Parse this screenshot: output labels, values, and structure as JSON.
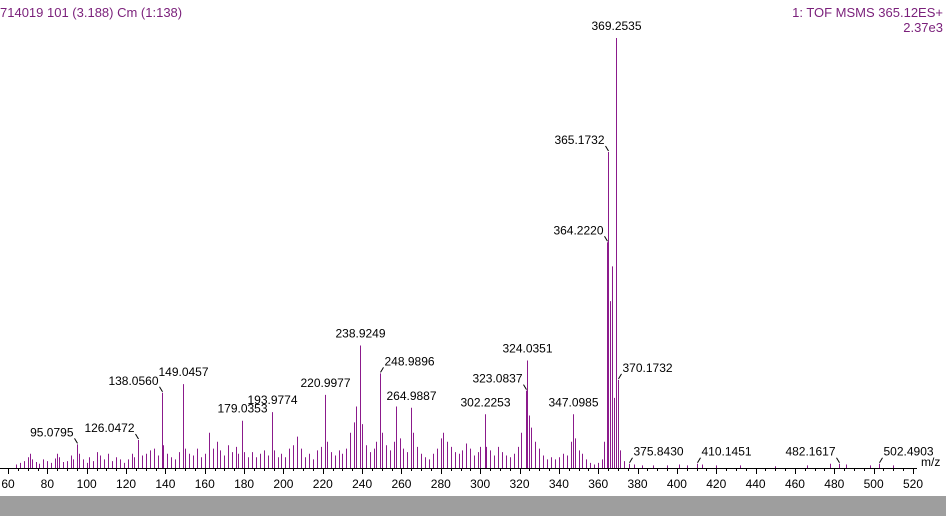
{
  "header": {
    "sample_info": "714019 101 (3.188) Cm (1:138)",
    "experiment": "1: TOF MSMS 365.12ES+",
    "intensity": "2.37e3"
  },
  "colors": {
    "peak": "#8b1a8b",
    "header_text": "#7a1f7a",
    "axis": "#000000",
    "bottom_bar": "#9e9e9e"
  },
  "chart_data": {
    "type": "bar",
    "title": "",
    "xlabel": "m/z",
    "ylabel": "",
    "xlim": [
      60,
      520
    ],
    "ylim": [
      0,
      100
    ],
    "x_ticks": [
      60,
      80,
      100,
      120,
      140,
      160,
      180,
      200,
      220,
      240,
      260,
      280,
      300,
      320,
      340,
      360,
      380,
      400,
      420,
      440,
      460,
      480,
      500,
      520
    ],
    "labeled_peaks": [
      {
        "mz": 95.0795,
        "intensity": 5.5,
        "label": "95.0795"
      },
      {
        "mz": 126.0472,
        "intensity": 6.5,
        "label": "126.0472"
      },
      {
        "mz": 138.056,
        "intensity": 17.5,
        "label": "138.0560"
      },
      {
        "mz": 149.0457,
        "intensity": 19.5,
        "label": "149.0457"
      },
      {
        "mz": 179.0353,
        "intensity": 11.0,
        "label": "179.0353"
      },
      {
        "mz": 193.9774,
        "intensity": 13.0,
        "label": "193.9774"
      },
      {
        "mz": 220.9977,
        "intensity": 17.0,
        "label": "220.9977"
      },
      {
        "mz": 238.9249,
        "intensity": 28.5,
        "label": "238.9249"
      },
      {
        "mz": 248.9896,
        "intensity": 22.0,
        "label": "248.9896"
      },
      {
        "mz": 264.9887,
        "intensity": 14.0,
        "label": "264.9887"
      },
      {
        "mz": 302.2253,
        "intensity": 12.5,
        "label": "302.2253"
      },
      {
        "mz": 323.0837,
        "intensity": 18.0,
        "label": "323.0837"
      },
      {
        "mz": 324.0351,
        "intensity": 25.0,
        "label": "324.0351"
      },
      {
        "mz": 347.0985,
        "intensity": 12.5,
        "label": "347.0985"
      },
      {
        "mz": 364.222,
        "intensity": 52.5,
        "label": "364.2220"
      },
      {
        "mz": 365.1732,
        "intensity": 73.5,
        "label": "365.1732"
      },
      {
        "mz": 369.2535,
        "intensity": 100.0,
        "label": "369.2535"
      },
      {
        "mz": 370.1732,
        "intensity": 20.5,
        "label": "370.1732"
      },
      {
        "mz": 375.843,
        "intensity": 1.0,
        "label": "375.8430"
      },
      {
        "mz": 410.1451,
        "intensity": 1.0,
        "label": "410.1451"
      },
      {
        "mz": 482.1617,
        "intensity": 1.0,
        "label": "482.1617"
      },
      {
        "mz": 502.4903,
        "intensity": 1.0,
        "label": "502.4903"
      }
    ],
    "peaks": [
      [
        64,
        0.8
      ],
      [
        66,
        1.2
      ],
      [
        68,
        1.6
      ],
      [
        70,
        2.5
      ],
      [
        71,
        3.3
      ],
      [
        72,
        2.0
      ],
      [
        74,
        1.4
      ],
      [
        76,
        1.0
      ],
      [
        78,
        2.0
      ],
      [
        80,
        1.6
      ],
      [
        82,
        1.2
      ],
      [
        84,
        2.2
      ],
      [
        85,
        3.3
      ],
      [
        86,
        2.5
      ],
      [
        88,
        1.4
      ],
      [
        90,
        1.6
      ],
      [
        92,
        2.9
      ],
      [
        93,
        2.0
      ],
      [
        95.0795,
        5.5
      ],
      [
        96,
        3.3
      ],
      [
        98,
        2.0
      ],
      [
        100,
        1.2
      ],
      [
        101,
        2.5
      ],
      [
        103,
        1.6
      ],
      [
        105,
        3.7
      ],
      [
        107,
        2.9
      ],
      [
        109,
        2.0
      ],
      [
        111,
        3.3
      ],
      [
        113,
        1.6
      ],
      [
        115,
        2.5
      ],
      [
        117,
        2.0
      ],
      [
        119,
        1.2
      ],
      [
        121,
        2.0
      ],
      [
        123,
        3.3
      ],
      [
        124,
        2.5
      ],
      [
        126.0472,
        6.5
      ],
      [
        128,
        2.9
      ],
      [
        130,
        3.3
      ],
      [
        132,
        4.1
      ],
      [
        134,
        4.5
      ],
      [
        136,
        2.9
      ],
      [
        138.056,
        17.5
      ],
      [
        139,
        5.3
      ],
      [
        141,
        3.3
      ],
      [
        143,
        2.5
      ],
      [
        145,
        2.0
      ],
      [
        147,
        3.7
      ],
      [
        149.0457,
        19.5
      ],
      [
        150,
        4.5
      ],
      [
        152,
        3.3
      ],
      [
        154,
        2.9
      ],
      [
        156,
        4.5
      ],
      [
        158,
        2.5
      ],
      [
        160,
        3.3
      ],
      [
        162,
        8.2
      ],
      [
        164,
        4.5
      ],
      [
        166,
        6.1
      ],
      [
        168,
        4.1
      ],
      [
        170,
        2.9
      ],
      [
        172,
        5.3
      ],
      [
        174,
        3.7
      ],
      [
        176,
        4.9
      ],
      [
        177,
        3.3
      ],
      [
        179.0353,
        11.0
      ],
      [
        180,
        3.7
      ],
      [
        182,
        2.5
      ],
      [
        184,
        3.7
      ],
      [
        186,
        2.5
      ],
      [
        188,
        3.3
      ],
      [
        190,
        4.1
      ],
      [
        192,
        2.9
      ],
      [
        193.9774,
        13.0
      ],
      [
        195,
        4.1
      ],
      [
        197,
        2.5
      ],
      [
        199,
        3.3
      ],
      [
        201,
        2.5
      ],
      [
        203,
        4.5
      ],
      [
        205,
        5.3
      ],
      [
        207,
        7.3
      ],
      [
        209,
        4.5
      ],
      [
        211,
        2.5
      ],
      [
        213,
        3.3
      ],
      [
        215,
        2.0
      ],
      [
        217,
        4.1
      ],
      [
        219,
        4.9
      ],
      [
        220.9977,
        17.0
      ],
      [
        222,
        6.1
      ],
      [
        224,
        3.7
      ],
      [
        226,
        2.9
      ],
      [
        228,
        4.1
      ],
      [
        230,
        3.3
      ],
      [
        232,
        4.5
      ],
      [
        234,
        8.2
      ],
      [
        236,
        10.6
      ],
      [
        237,
        14.3
      ],
      [
        238.9249,
        28.5
      ],
      [
        240,
        10.2
      ],
      [
        242,
        5.3
      ],
      [
        244,
        3.7
      ],
      [
        246,
        4.5
      ],
      [
        247,
        6.1
      ],
      [
        248.9896,
        22.0
      ],
      [
        250,
        8.2
      ],
      [
        252,
        5.3
      ],
      [
        254,
        4.1
      ],
      [
        256,
        6.1
      ],
      [
        257,
        14.3
      ],
      [
        259,
        6.9
      ],
      [
        261,
        4.5
      ],
      [
        263,
        3.7
      ],
      [
        264.9887,
        14.0
      ],
      [
        266,
        8.2
      ],
      [
        268,
        4.9
      ],
      [
        270,
        3.3
      ],
      [
        272,
        2.5
      ],
      [
        274,
        2.0
      ],
      [
        276,
        3.3
      ],
      [
        278,
        4.5
      ],
      [
        280,
        6.9
      ],
      [
        281,
        8.2
      ],
      [
        283,
        6.1
      ],
      [
        285,
        4.9
      ],
      [
        287,
        3.7
      ],
      [
        289,
        3.3
      ],
      [
        291,
        4.1
      ],
      [
        293,
        5.7
      ],
      [
        295,
        4.5
      ],
      [
        297,
        2.9
      ],
      [
        299,
        3.7
      ],
      [
        300,
        4.9
      ],
      [
        302.2253,
        12.5
      ],
      [
        303,
        4.9
      ],
      [
        305,
        4.1
      ],
      [
        307,
        2.9
      ],
      [
        309,
        4.9
      ],
      [
        311,
        3.7
      ],
      [
        313,
        2.9
      ],
      [
        315,
        2.5
      ],
      [
        317,
        3.3
      ],
      [
        319,
        4.9
      ],
      [
        321,
        8.2
      ],
      [
        323.0837,
        18.0
      ],
      [
        324.0351,
        25.0
      ],
      [
        325,
        12.2
      ],
      [
        326,
        9.4
      ],
      [
        328,
        6.1
      ],
      [
        330,
        4.5
      ],
      [
        332,
        2.9
      ],
      [
        334,
        2.0
      ],
      [
        336,
        2.5
      ],
      [
        338,
        2.0
      ],
      [
        340,
        2.5
      ],
      [
        342,
        3.3
      ],
      [
        344,
        2.9
      ],
      [
        346,
        6.1
      ],
      [
        347.0985,
        12.5
      ],
      [
        348,
        6.9
      ],
      [
        350,
        4.1
      ],
      [
        352,
        3.3
      ],
      [
        354,
        2.0
      ],
      [
        356,
        1.2
      ],
      [
        358,
        0.8
      ],
      [
        360,
        1.2
      ],
      [
        362,
        2.0
      ],
      [
        363,
        6.1
      ],
      [
        364.222,
        52.5
      ],
      [
        365.1732,
        73.5
      ],
      [
        366,
        38.8
      ],
      [
        367,
        46.9
      ],
      [
        368,
        16.3
      ],
      [
        369.2535,
        100.0
      ],
      [
        370.1732,
        20.5
      ],
      [
        371,
        4.1
      ],
      [
        373,
        1.6
      ],
      [
        375.843,
        1.0
      ],
      [
        378,
        0.8
      ],
      [
        382,
        0.6
      ],
      [
        388,
        0.6
      ],
      [
        395,
        0.6
      ],
      [
        401,
        0.8
      ],
      [
        405,
        0.6
      ],
      [
        410.1451,
        1.0
      ],
      [
        413,
        0.8
      ],
      [
        420,
        0.6
      ],
      [
        432,
        0.6
      ],
      [
        450,
        0.4
      ],
      [
        466,
        0.6
      ],
      [
        478,
        1.0
      ],
      [
        482.1617,
        1.0
      ],
      [
        486,
        0.8
      ],
      [
        498,
        0.6
      ],
      [
        502.4903,
        1.0
      ],
      [
        510,
        0.6
      ]
    ]
  }
}
